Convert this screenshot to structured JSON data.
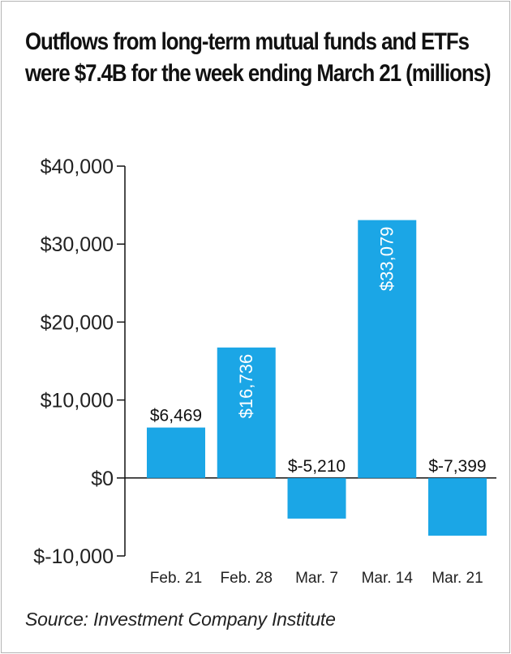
{
  "chart_data": {
    "type": "bar",
    "title": "Outflows from long-term mutual funds and ETFs were $7.4B for the week ending March 21 (millions)",
    "categories": [
      "Feb. 21",
      "Feb. 28",
      "Mar. 7",
      "Mar. 14",
      "Mar. 21"
    ],
    "values": [
      6469,
      16736,
      -5210,
      33079,
      -7399
    ],
    "value_labels": [
      "$6,469",
      "$16,736",
      "$-5,210",
      "$33,079",
      "$-7,399"
    ],
    "label_placement": [
      "above",
      "inside-vertical",
      "above",
      "inside-vertical",
      "above"
    ],
    "ylim": [
      -10000,
      40000
    ],
    "yticks": [
      40000,
      30000,
      20000,
      10000,
      0,
      -10000
    ],
    "ytick_labels": [
      "$40,000",
      "$30,000",
      "$20,000",
      "$10,000",
      "$0",
      "$-10,000"
    ],
    "xlabel": "",
    "ylabel": "",
    "grid": false,
    "bar_color": "#1ba6e6",
    "source": "Source: Investment Company Institute"
  }
}
